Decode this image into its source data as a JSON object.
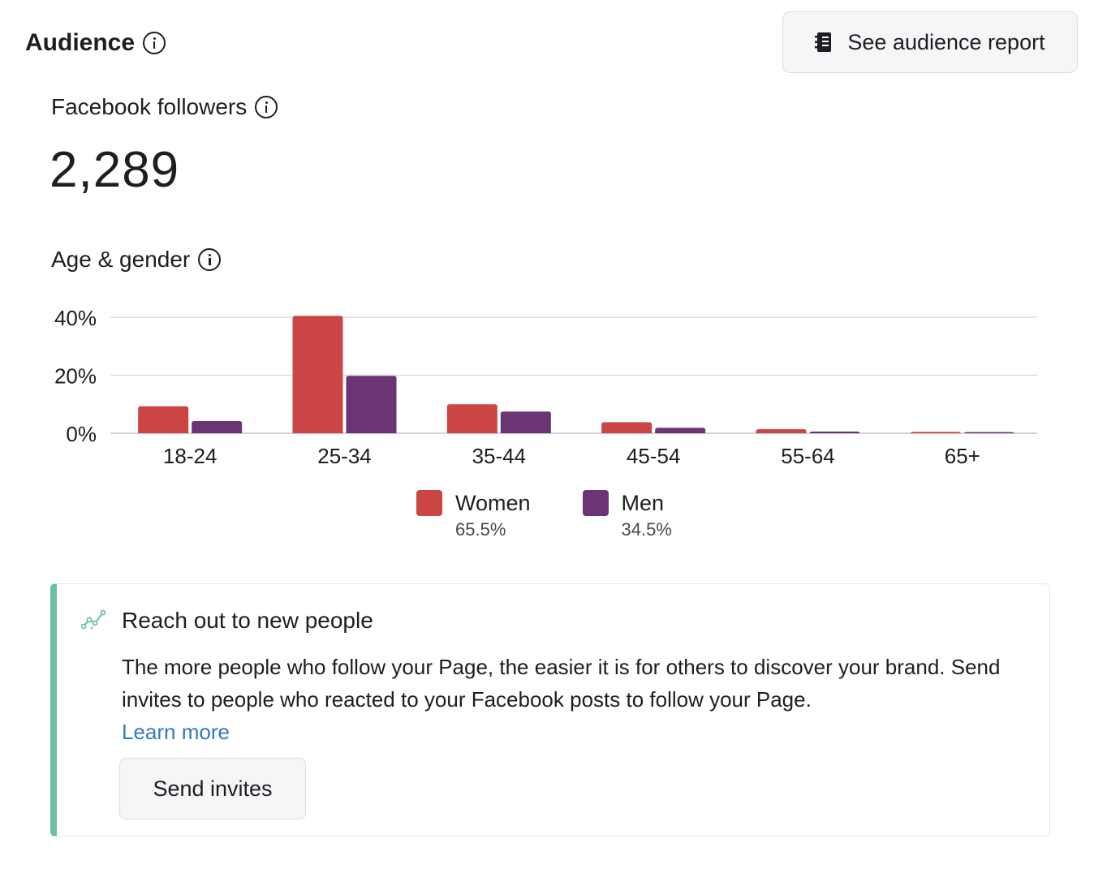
{
  "header": {
    "title": "Audience",
    "report_button_label": "See audience report"
  },
  "followers": {
    "label": "Facebook followers",
    "value": "2,289"
  },
  "age_gender": {
    "label": "Age & gender"
  },
  "colors": {
    "women": "#cc4545",
    "men": "#6b3474",
    "accent": "#6cbfa7",
    "link": "#3578c0"
  },
  "chart_data": {
    "type": "bar",
    "categories": [
      "18-24",
      "25-34",
      "35-44",
      "45-54",
      "55-64",
      "65+"
    ],
    "series": [
      {
        "name": "Women",
        "values": [
          9.3,
          40.5,
          10,
          3.8,
          1.4,
          0.5
        ]
      },
      {
        "name": "Men",
        "values": [
          4.2,
          19.8,
          7.5,
          1.9,
          0.6,
          0.4
        ]
      }
    ],
    "ylim": [
      0,
      40
    ],
    "y_ticks": [
      "0%",
      "20%",
      "40%"
    ],
    "y_tick_values": [
      0,
      20,
      40
    ],
    "grid": true,
    "legend": [
      {
        "label": "Women",
        "pct": "65.5%"
      },
      {
        "label": "Men",
        "pct": "34.5%"
      }
    ],
    "legend_position": "bottom"
  },
  "card": {
    "title": "Reach out to new people",
    "icon": "trend-icon",
    "body": "The more people who follow your Page, the easier it is for others to discover your brand. Send invites to people who reacted to your Facebook posts to follow your Page.",
    "link_text": "Learn more",
    "button_label": "Send invites"
  }
}
